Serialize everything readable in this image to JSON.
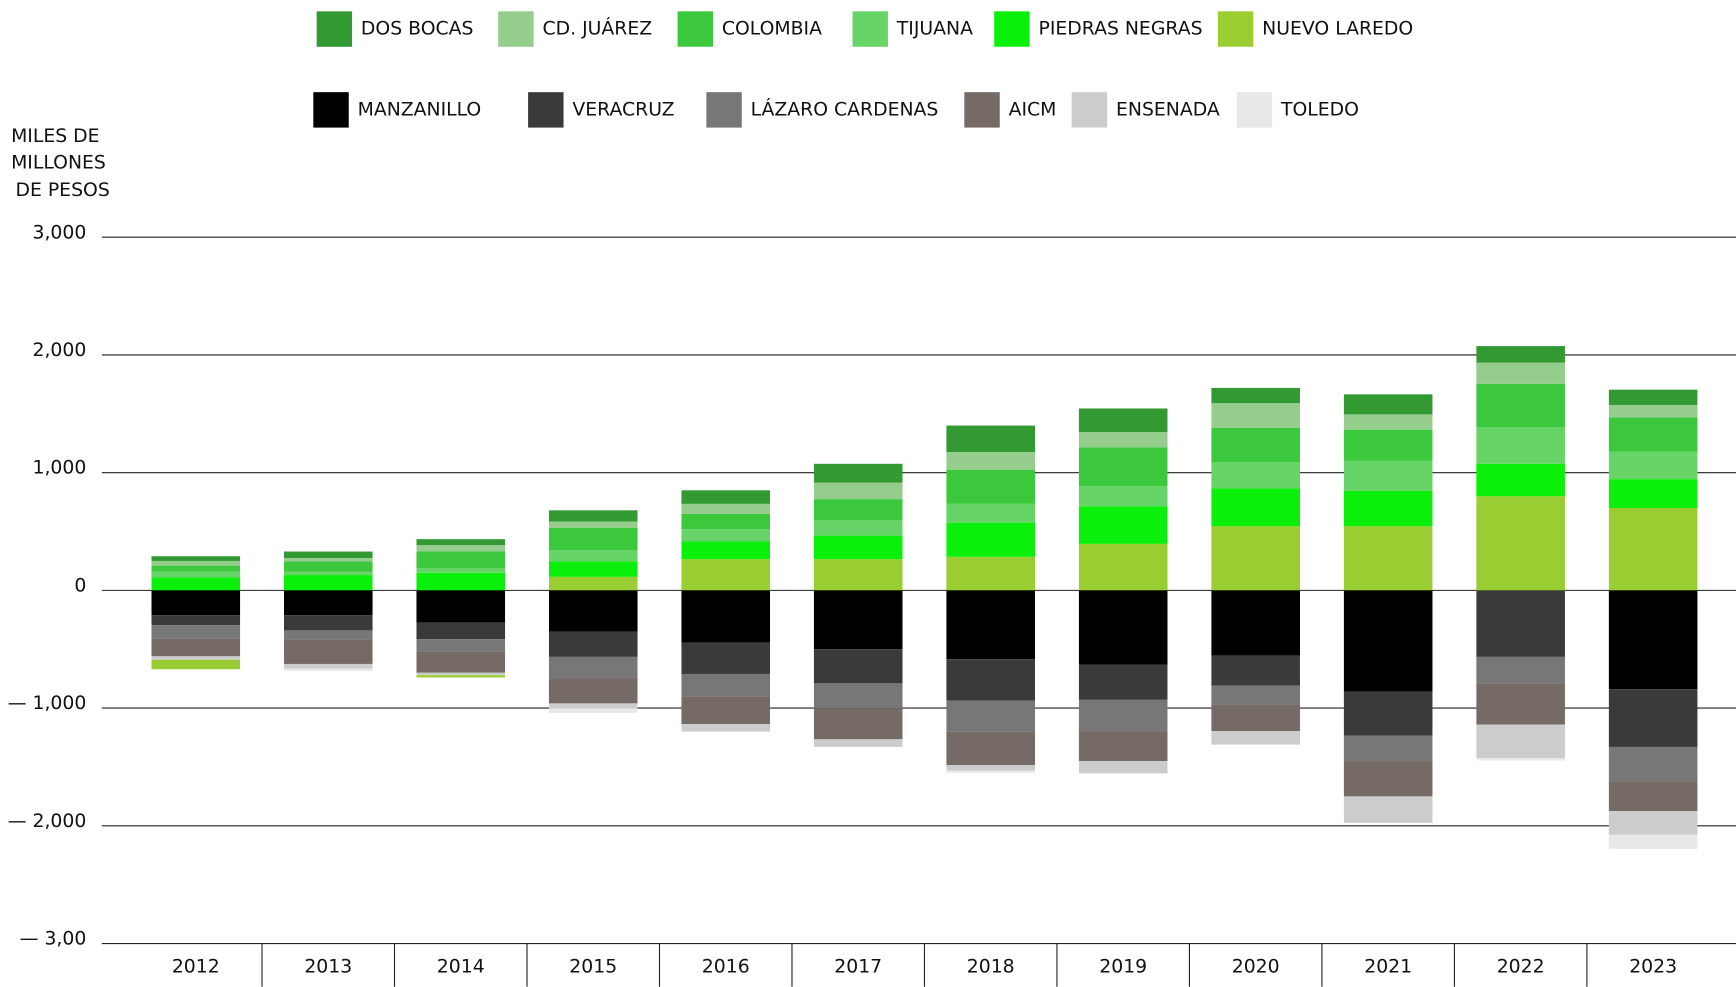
{
  "chart_data": {
    "type": "stacked_bar",
    "y_label": [
      "MILES DE",
      "MILLONES",
      "DE PESOS"
    ],
    "categories": [
      "2012",
      "2013",
      "2014",
      "2015",
      "2016",
      "2017",
      "2018",
      "2019",
      "2020",
      "2021",
      "2022",
      "2023"
    ],
    "ylim": [
      -3000,
      3000
    ],
    "yticks": [
      {
        "value": 3000,
        "label": "3,000"
      },
      {
        "value": 2000,
        "label": "2,000"
      },
      {
        "value": 1000,
        "label": "1,000"
      },
      0,
      {
        "value": -1000,
        "label": "— 1,000"
      },
      {
        "value": -2000,
        "label": "— 2,000"
      },
      {
        "value": -3000,
        "label": "— 3,00"
      }
    ],
    "grid": true,
    "series": [
      {
        "name": "DOS BOCAS",
        "color": "#339933",
        "values": [
          40,
          55,
          50,
          95,
          115,
          160,
          225,
          200,
          130,
          170,
          140,
          130
        ]
      },
      {
        "name": "CD. JUÁREZ",
        "color": "#94cd8c",
        "values": [
          40,
          30,
          55,
          55,
          85,
          140,
          150,
          130,
          210,
          130,
          180,
          105
        ]
      },
      {
        "name": "COLOMBIA",
        "color": "#3cc83c",
        "values": [
          50,
          85,
          140,
          190,
          130,
          180,
          290,
          330,
          290,
          265,
          370,
          290
        ]
      },
      {
        "name": "TIJUANA",
        "color": "#66d466",
        "values": [
          50,
          30,
          40,
          95,
          105,
          130,
          160,
          170,
          225,
          255,
          310,
          235
        ]
      },
      {
        "name": "PIEDRAS NEGRAS",
        "color": "#0af00a",
        "values": [
          110,
          130,
          150,
          130,
          150,
          200,
          290,
          320,
          320,
          300,
          275,
          245
        ]
      },
      {
        "name": "NUEVO LAREDO",
        "color": "#9acd32",
        "values": [
          -80,
          0,
          -20,
          115,
          265,
          265,
          285,
          395,
          545,
          545,
          800,
          700
        ]
      },
      {
        "name": "MANZANILLO",
        "color": "#000000",
        "values": [
          -210,
          -210,
          -275,
          -350,
          -445,
          -500,
          -585,
          -630,
          -555,
          -860,
          0,
          -840
        ]
      },
      {
        "name": "VERACRUZ",
        "color": "#3a3a3a",
        "values": [
          -85,
          -130,
          -140,
          -215,
          -265,
          -290,
          -350,
          -300,
          -255,
          -375,
          -565,
          -490
        ]
      },
      {
        "name": "LÁZARO CARDENAS",
        "color": "#777777",
        "values": [
          -115,
          -75,
          -105,
          -180,
          -190,
          -210,
          -265,
          -265,
          -160,
          -215,
          -225,
          -290
        ]
      },
      {
        "name": "AICM",
        "color": "#756a65",
        "values": [
          -150,
          -210,
          -180,
          -215,
          -235,
          -265,
          -285,
          -255,
          -225,
          -300,
          -350,
          -255
        ]
      },
      {
        "name": "ENSENADA",
        "color": "#cccccc",
        "values": [
          -30,
          -40,
          -20,
          -40,
          -65,
          -65,
          -45,
          -105,
          -115,
          -225,
          -285,
          -200
        ]
      },
      {
        "name": "TOLEDO",
        "color": "#e8e8e8",
        "values": [
          0,
          -20,
          0,
          -40,
          0,
          0,
          -20,
          0,
          0,
          0,
          -20,
          -120
        ]
      }
    ]
  }
}
